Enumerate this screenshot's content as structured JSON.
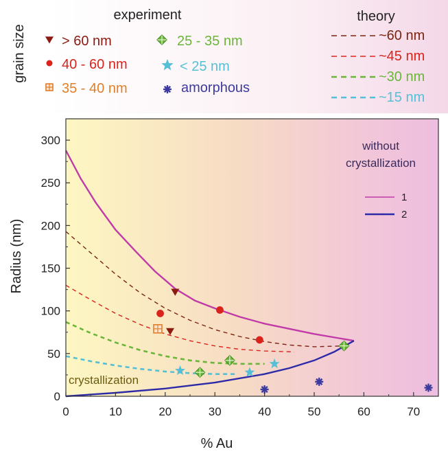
{
  "legend": {
    "side_label": "grain size",
    "experiment_title": "experiment",
    "theory_title": "theory",
    "experiment_items": [
      {
        "label": "> 60 nm",
        "marker": "triangle-down",
        "color": "#8b1a10"
      },
      {
        "label": "40 - 60 nm",
        "marker": "circle",
        "color": "#d9231c"
      },
      {
        "label": "35 - 40 nm",
        "marker": "square-cross",
        "color": "#e07f2a"
      },
      {
        "label": "25 - 35 nm",
        "marker": "diamond-cross",
        "color": "#6ab53a"
      },
      {
        "label": "< 25 nm",
        "marker": "star",
        "color": "#55bfd6"
      },
      {
        "label": "amorphous",
        "marker": "asterisk",
        "color": "#3c3a9e"
      }
    ],
    "theory_items": [
      {
        "label": "~60 nm",
        "color": "#7a2410"
      },
      {
        "label": "~45 nm",
        "color": "#d9231c"
      },
      {
        "label": "~30 nm",
        "color": "#6ab53a"
      },
      {
        "label": "~15 nm",
        "color": "#55bfd6"
      }
    ]
  },
  "chart_data": {
    "type": "scatter",
    "xlabel": "% Au",
    "ylabel": "Radius (nm)",
    "xlim": [
      0,
      75
    ],
    "ylim": [
      0,
      325
    ],
    "xticks": [
      0,
      10,
      20,
      30,
      40,
      50,
      60,
      70
    ],
    "yticks": [
      0,
      50,
      100,
      150,
      200,
      250,
      300
    ],
    "annotations": {
      "upper_region": [
        "without",
        "crystallization"
      ],
      "lower_region": "crystallization"
    },
    "inner_legend": [
      {
        "label": "1",
        "color": "#c03aa8"
      },
      {
        "label": "2",
        "color": "#2d2aa8"
      }
    ],
    "series": [
      {
        "name": "> 60 nm",
        "marker": "triangle-down",
        "color": "#8b1a10",
        "points": [
          [
            22,
            122
          ],
          [
            21,
            76
          ]
        ]
      },
      {
        "name": "40 - 60 nm",
        "marker": "circle",
        "color": "#d9231c",
        "points": [
          [
            19,
            97
          ],
          [
            31,
            101
          ],
          [
            39,
            66
          ]
        ]
      },
      {
        "name": "35 - 40 nm",
        "marker": "square-cross",
        "color": "#e07f2a",
        "points": [
          [
            18.5,
            79
          ]
        ]
      },
      {
        "name": "25 - 35 nm",
        "marker": "diamond-cross",
        "color": "#6ab53a",
        "points": [
          [
            27,
            28
          ],
          [
            33,
            42
          ],
          [
            56,
            59
          ]
        ]
      },
      {
        "name": "< 25 nm",
        "marker": "star",
        "color": "#55bfd6",
        "points": [
          [
            23,
            30
          ],
          [
            37,
            28
          ],
          [
            42,
            38
          ]
        ]
      },
      {
        "name": "amorphous",
        "marker": "asterisk",
        "color": "#3c3a9e",
        "points": [
          [
            40,
            8
          ],
          [
            51,
            17
          ],
          [
            73,
            10
          ]
        ]
      }
    ],
    "boundary_curves": [
      {
        "label": "1",
        "color": "#c03aa8",
        "points": [
          [
            0,
            288
          ],
          [
            3,
            255
          ],
          [
            6,
            227
          ],
          [
            10,
            195
          ],
          [
            14,
            170
          ],
          [
            18,
            146
          ],
          [
            22,
            126
          ],
          [
            26,
            112
          ],
          [
            30,
            103
          ],
          [
            35,
            93
          ],
          [
            40,
            85
          ],
          [
            45,
            79
          ],
          [
            50,
            73
          ],
          [
            55,
            68
          ],
          [
            58,
            65
          ]
        ]
      },
      {
        "label": "2",
        "color": "#2d2aa8",
        "points": [
          [
            0,
            0
          ],
          [
            10,
            4
          ],
          [
            20,
            9
          ],
          [
            30,
            16
          ],
          [
            40,
            26
          ],
          [
            45,
            33
          ],
          [
            50,
            42
          ],
          [
            54,
            52
          ],
          [
            58,
            65
          ]
        ]
      }
    ],
    "theory_curves": [
      {
        "label": "~60 nm",
        "color": "#7a2410",
        "points": [
          [
            0,
            193
          ],
          [
            5,
            168
          ],
          [
            10,
            143
          ],
          [
            15,
            121
          ],
          [
            20,
            103
          ],
          [
            25,
            89
          ],
          [
            30,
            78
          ],
          [
            35,
            70
          ],
          [
            40,
            64
          ],
          [
            45,
            60
          ],
          [
            50,
            58
          ],
          [
            56,
            59
          ]
        ]
      },
      {
        "label": "~45 nm",
        "color": "#d9231c",
        "points": [
          [
            0,
            130
          ],
          [
            5,
            113
          ],
          [
            10,
            97
          ],
          [
            15,
            84
          ],
          [
            20,
            73
          ],
          [
            25,
            65
          ],
          [
            30,
            59
          ],
          [
            35,
            55
          ],
          [
            40,
            53
          ],
          [
            46,
            52
          ]
        ]
      },
      {
        "label": "~30 nm",
        "color": "#6ab53a",
        "points": [
          [
            0,
            87
          ],
          [
            5,
            74
          ],
          [
            10,
            63
          ],
          [
            15,
            54
          ],
          [
            20,
            47
          ],
          [
            25,
            42
          ],
          [
            30,
            39
          ],
          [
            35,
            38
          ],
          [
            40,
            38
          ]
        ]
      },
      {
        "label": "~15 nm",
        "color": "#55bfd6",
        "points": [
          [
            0,
            47
          ],
          [
            5,
            41
          ],
          [
            10,
            36
          ],
          [
            15,
            32
          ],
          [
            20,
            29
          ],
          [
            25,
            27
          ],
          [
            30,
            26
          ],
          [
            34,
            26
          ]
        ]
      }
    ]
  }
}
